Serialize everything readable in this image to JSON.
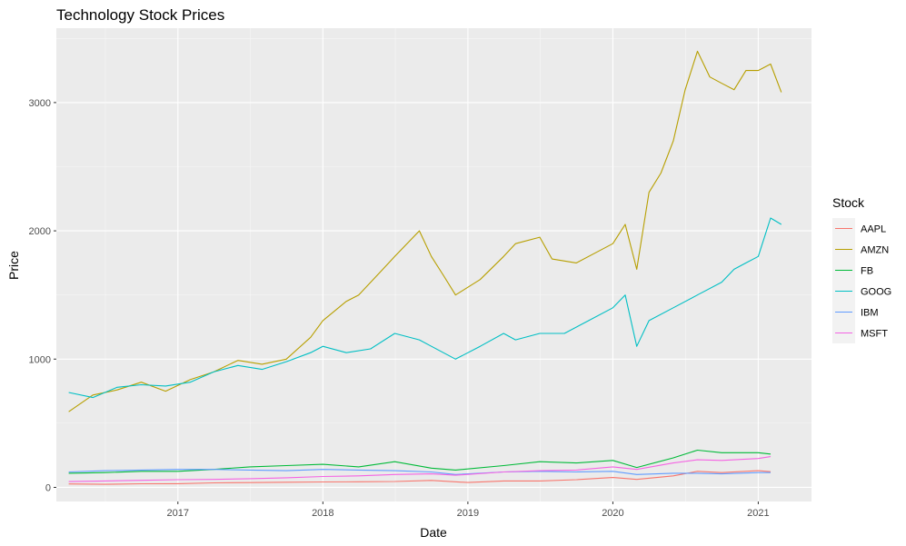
{
  "chart_data": {
    "type": "line",
    "title": "Technology Stock Prices",
    "xlabel": "Date",
    "ylabel": "Price",
    "legend_title": "Stock",
    "legend_position": "right",
    "grid": true,
    "xlim": [
      "2016-03-01",
      "2021-05-15"
    ],
    "ylim": [
      -110,
      3580
    ],
    "x_ticks": [
      {
        "date": "2017-01-01",
        "label": "2017"
      },
      {
        "date": "2018-01-01",
        "label": "2018"
      },
      {
        "date": "2019-01-01",
        "label": "2019"
      },
      {
        "date": "2020-01-01",
        "label": "2020"
      },
      {
        "date": "2021-01-01",
        "label": "2021"
      }
    ],
    "y_ticks": [
      0,
      1000,
      2000,
      3000
    ],
    "series": [
      {
        "name": "AAPL",
        "color": "#F8766D",
        "x": [
          "2016-04",
          "2016-07",
          "2016-10",
          "2017-01",
          "2017-04",
          "2017-07",
          "2017-10",
          "2018-01",
          "2018-04",
          "2018-07",
          "2018-10",
          "2019-01",
          "2019-04",
          "2019-07",
          "2019-10",
          "2020-01",
          "2020-03",
          "2020-06",
          "2020-08",
          "2020-10",
          "2021-01",
          "2021-02"
        ],
        "values": [
          27,
          24,
          28,
          29,
          35,
          37,
          40,
          42,
          44,
          46,
          54,
          38,
          50,
          50,
          60,
          77,
          62,
          90,
          125,
          115,
          130,
          122
        ]
      },
      {
        "name": "AMZN",
        "color": "#B79F00",
        "x": [
          "2016-04",
          "2016-06",
          "2016-08",
          "2016-10",
          "2016-12",
          "2017-02",
          "2017-04",
          "2017-06",
          "2017-08",
          "2017-10",
          "2017-12",
          "2018-01",
          "2018-03",
          "2018-04",
          "2018-06",
          "2018-07",
          "2018-09",
          "2018-10",
          "2018-11",
          "2018-12",
          "2019-02",
          "2019-04",
          "2019-05",
          "2019-07",
          "2019-08",
          "2019-10",
          "2019-12",
          "2020-01",
          "2020-02",
          "2020-03",
          "2020-04",
          "2020-05",
          "2020-06",
          "2020-07",
          "2020-08",
          "2020-09",
          "2020-10",
          "2020-11",
          "2020-12",
          "2021-01",
          "2021-02",
          "2021-02-28"
        ],
        "values": [
          590,
          720,
          760,
          820,
          750,
          840,
          900,
          990,
          960,
          1000,
          1170,
          1300,
          1450,
          1500,
          1700,
          1800,
          2000,
          1800,
          1650,
          1500,
          1620,
          1800,
          1900,
          1950,
          1780,
          1750,
          1850,
          1900,
          2050,
          1700,
          2300,
          2450,
          2700,
          3100,
          3400,
          3200,
          3150,
          3100,
          3250,
          3250,
          3300,
          3080
        ]
      },
      {
        "name": "FB",
        "color": "#00BA38",
        "x": [
          "2016-04",
          "2016-07",
          "2016-10",
          "2017-01",
          "2017-04",
          "2017-07",
          "2017-10",
          "2018-01",
          "2018-04",
          "2018-07",
          "2018-10",
          "2018-12",
          "2019-04",
          "2019-07",
          "2019-10",
          "2020-01",
          "2020-03",
          "2020-06",
          "2020-08",
          "2020-10",
          "2021-01",
          "2021-02"
        ],
        "values": [
          110,
          115,
          125,
          125,
          140,
          160,
          170,
          180,
          160,
          200,
          150,
          135,
          170,
          200,
          190,
          210,
          155,
          230,
          290,
          270,
          270,
          260
        ]
      },
      {
        "name": "GOOG",
        "color": "#00BFC4",
        "x": [
          "2016-04",
          "2016-06",
          "2016-08",
          "2016-10",
          "2016-12",
          "2017-02",
          "2017-04",
          "2017-06",
          "2017-08",
          "2017-10",
          "2017-12",
          "2018-01",
          "2018-03",
          "2018-05",
          "2018-07",
          "2018-09",
          "2018-10",
          "2018-12",
          "2019-02",
          "2019-04",
          "2019-05",
          "2019-07",
          "2019-09",
          "2019-11",
          "2020-01",
          "2020-02",
          "2020-03",
          "2020-04",
          "2020-06",
          "2020-08",
          "2020-10",
          "2020-11",
          "2020-12",
          "2021-01",
          "2021-02",
          "2021-02-28"
        ],
        "values": [
          740,
          700,
          780,
          800,
          790,
          820,
          900,
          950,
          920,
          980,
          1050,
          1100,
          1050,
          1080,
          1200,
          1150,
          1100,
          1000,
          1100,
          1200,
          1150,
          1200,
          1200,
          1300,
          1400,
          1500,
          1100,
          1300,
          1400,
          1500,
          1600,
          1700,
          1750,
          1800,
          2100,
          2050
        ]
      },
      {
        "name": "IBM",
        "color": "#619CFF",
        "x": [
          "2016-04",
          "2016-07",
          "2016-10",
          "2017-01",
          "2017-04",
          "2017-07",
          "2017-10",
          "2018-01",
          "2018-04",
          "2018-07",
          "2018-10",
          "2018-12",
          "2019-04",
          "2019-07",
          "2019-10",
          "2020-01",
          "2020-03",
          "2020-06",
          "2020-08",
          "2020-10",
          "2021-01",
          "2021-02"
        ],
        "values": [
          120,
          130,
          135,
          140,
          140,
          135,
          130,
          140,
          135,
          130,
          120,
          100,
          120,
          125,
          120,
          125,
          100,
          110,
          110,
          105,
          115,
          115
        ]
      },
      {
        "name": "MSFT",
        "color": "#F564E3",
        "x": [
          "2016-04",
          "2016-07",
          "2016-10",
          "2017-01",
          "2017-04",
          "2017-07",
          "2017-10",
          "2018-01",
          "2018-04",
          "2018-07",
          "2018-10",
          "2018-12",
          "2019-04",
          "2019-07",
          "2019-10",
          "2020-01",
          "2020-03",
          "2020-06",
          "2020-08",
          "2020-10",
          "2021-01",
          "2021-02"
        ],
        "values": [
          45,
          50,
          55,
          60,
          62,
          68,
          75,
          85,
          90,
          100,
          105,
          95,
          120,
          130,
          135,
          160,
          140,
          190,
          215,
          210,
          225,
          240
        ]
      }
    ]
  }
}
